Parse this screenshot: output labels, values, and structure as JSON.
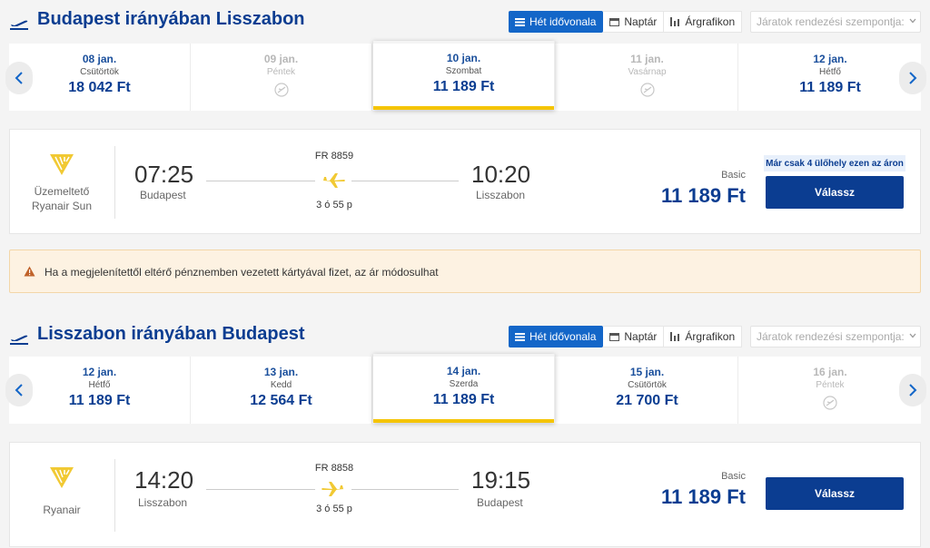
{
  "sections": [
    {
      "title": "Budapest irányában Lisszabon",
      "view_buttons": [
        "Hét idővonala",
        "Naptár",
        "Árgrafikon"
      ],
      "sort_placeholder": "Járatok rendezési szempontja:",
      "days": [
        {
          "date": "08 jan.",
          "weekday": "Csütörtök",
          "price": "18 042 Ft",
          "available": true,
          "selected": false
        },
        {
          "date": "09 jan.",
          "weekday": "Péntek",
          "price": "",
          "available": false,
          "selected": false
        },
        {
          "date": "10 jan.",
          "weekday": "Szombat",
          "price": "11 189 Ft",
          "available": true,
          "selected": true
        },
        {
          "date": "11 jan.",
          "weekday": "Vasárnap",
          "price": "",
          "available": false,
          "selected": false
        },
        {
          "date": "12 jan.",
          "weekday": "Hétfő",
          "price": "11 189 Ft",
          "available": true,
          "selected": false
        }
      ],
      "flight": {
        "airline": "Üzemeltető Ryanair Sun",
        "flight_no": "FR 8859",
        "depart_time": "07:25",
        "depart_city": "Budapest",
        "arrive_time": "10:20",
        "arrive_city": "Lisszabon",
        "duration": "3 ó 55 p",
        "fare": "Basic",
        "price": "11 189 Ft",
        "seat_badge": "Már csak 4 ülőhely ezen az áron",
        "choose_label": "Válassz"
      }
    },
    {
      "title": "Lisszabon irányában Budapest",
      "view_buttons": [
        "Hét idővonala",
        "Naptár",
        "Árgrafikon"
      ],
      "sort_placeholder": "Járatok rendezési szempontja:",
      "days": [
        {
          "date": "12 jan.",
          "weekday": "Hétfő",
          "price": "11 189 Ft",
          "available": true,
          "selected": false
        },
        {
          "date": "13 jan.",
          "weekday": "Kedd",
          "price": "12 564 Ft",
          "available": true,
          "selected": false
        },
        {
          "date": "14 jan.",
          "weekday": "Szerda",
          "price": "11 189 Ft",
          "available": true,
          "selected": true
        },
        {
          "date": "15 jan.",
          "weekday": "Csütörtök",
          "price": "21 700 Ft",
          "available": true,
          "selected": false
        },
        {
          "date": "16 jan.",
          "weekday": "Péntek",
          "price": "",
          "available": false,
          "selected": false
        }
      ],
      "flight": {
        "airline": "Ryanair",
        "flight_no": "FR 8858",
        "depart_time": "14:20",
        "depart_city": "Lisszabon",
        "arrive_time": "19:15",
        "arrive_city": "Budapest",
        "duration": "3 ó 55 p",
        "fare": "Basic",
        "price": "11 189 Ft",
        "seat_badge": "",
        "choose_label": "Válassz"
      }
    }
  ],
  "warning": "Ha a megjelenítettől eltérő pénznemben vezetett kártyával fizet, az ár módosulhat",
  "colors": {
    "brand": "#0b3d91",
    "accent": "#1366c8",
    "selected_bar": "#f5c400",
    "ryanair_logo": "#f1c933"
  },
  "icons": [
    "plane-takeoff-icon",
    "list-icon",
    "calendar-icon",
    "bar-chart-icon",
    "chevron-down-icon",
    "chevron-left-icon",
    "chevron-right-icon",
    "no-flight-icon",
    "ryanair-harp-logo",
    "plane-icon",
    "warning-icon"
  ]
}
